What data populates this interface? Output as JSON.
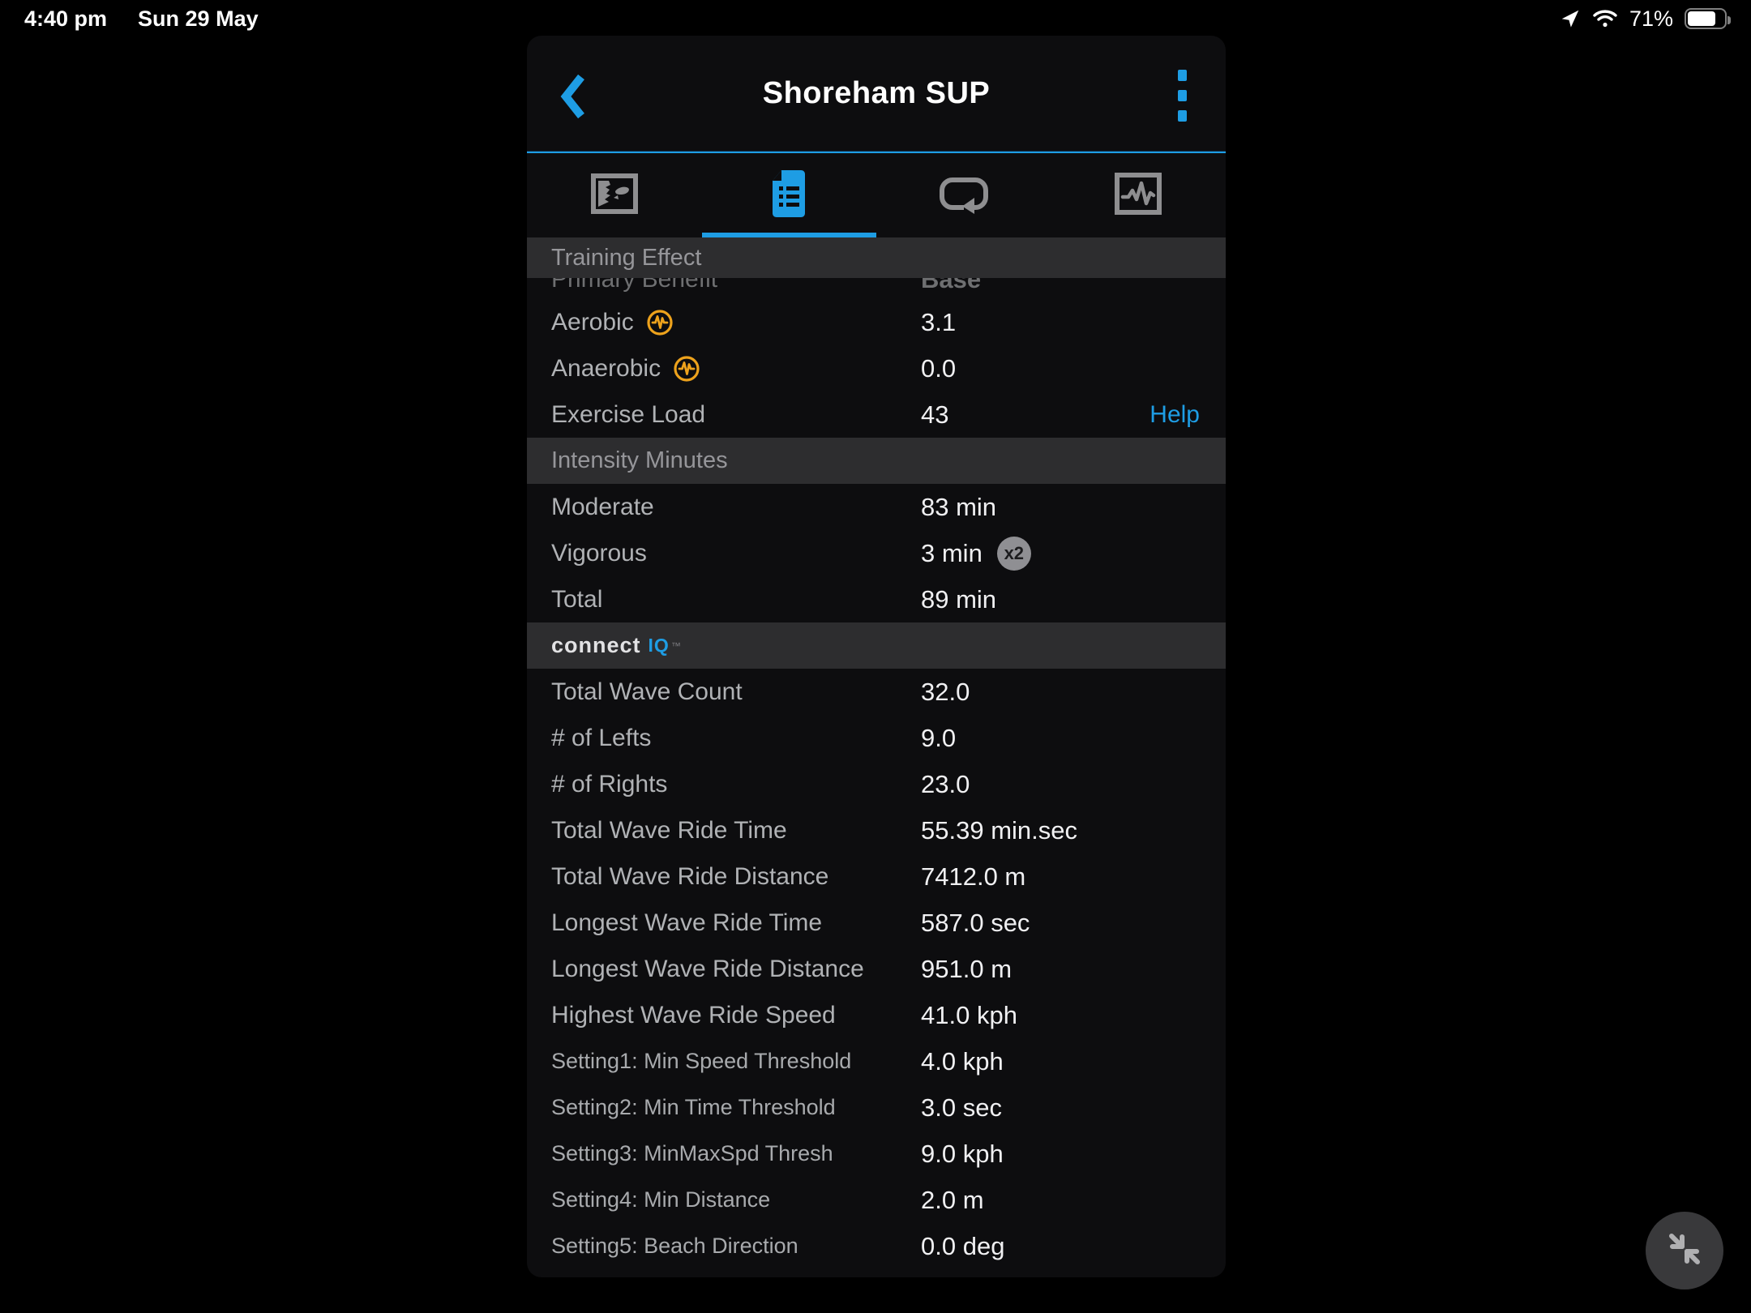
{
  "status_bar": {
    "time": "4:40 pm",
    "date": "Sun 29 May",
    "battery_percent": "71%",
    "icons": [
      "location-arrow-icon",
      "wifi-icon",
      "battery-icon"
    ]
  },
  "header": {
    "title": "Shoreham SUP",
    "back_icon": "chevron-left-icon",
    "menu_icon": "vertical-dots-menu-icon"
  },
  "tabs": [
    {
      "icon": "map-summary-icon",
      "active": false
    },
    {
      "icon": "stats-document-icon",
      "active": true
    },
    {
      "icon": "laps-loop-icon",
      "active": false
    },
    {
      "icon": "charts-pulse-icon",
      "active": false
    }
  ],
  "accent_colors": {
    "blue": "#1e9de4",
    "orange": "#eda21c",
    "band_gray": "#2d2d2f"
  },
  "sections": [
    {
      "type": "band",
      "label": "Training Effect",
      "first": true
    },
    {
      "type": "clipped_row",
      "label": "Primary Benefit",
      "value": "Base"
    },
    {
      "type": "row",
      "label": "Aerobic",
      "value": "3.1",
      "icon": "pulse-icon"
    },
    {
      "type": "row",
      "label": "Anaerobic",
      "value": "0.0",
      "icon": "pulse-icon"
    },
    {
      "type": "row",
      "label": "Exercise Load",
      "value": "43",
      "link": "Help"
    },
    {
      "type": "band",
      "label": "Intensity Minutes"
    },
    {
      "type": "row",
      "label": "Moderate",
      "value": "83 min"
    },
    {
      "type": "row",
      "label": "Vigorous",
      "value": "3 min",
      "badge": "x2"
    },
    {
      "type": "row",
      "label": "Total",
      "value": "89 min"
    },
    {
      "type": "logo_band",
      "text": "connect",
      "iq": "IQ",
      "tm": "™"
    },
    {
      "type": "row",
      "label": "Total Wave Count",
      "value": "32.0"
    },
    {
      "type": "row",
      "label": "# of Lefts",
      "value": "9.0"
    },
    {
      "type": "row",
      "label": "# of Rights",
      "value": "23.0"
    },
    {
      "type": "row",
      "label": "Total Wave Ride Time",
      "value": "55.39 min.sec"
    },
    {
      "type": "row",
      "label": "Total Wave Ride Distance",
      "value": "7412.0 m"
    },
    {
      "type": "row",
      "label": "Longest Wave Ride Time",
      "value": "587.0 sec"
    },
    {
      "type": "row",
      "label": "Longest Wave Ride Distance",
      "value": "951.0 m"
    },
    {
      "type": "row",
      "label": "Highest Wave Ride Speed",
      "value": "41.0 kph"
    },
    {
      "type": "row",
      "label": "Setting1: Min Speed Threshold",
      "value": "4.0 kph",
      "small": true
    },
    {
      "type": "row",
      "label": "Setting2: Min Time Threshold",
      "value": "3.0 sec",
      "small": true
    },
    {
      "type": "row",
      "label": "Setting3: MinMaxSpd Thresh",
      "value": "9.0 kph",
      "small": true
    },
    {
      "type": "row",
      "label": "Setting4: Min Distance",
      "value": "2.0 m",
      "small": true
    },
    {
      "type": "row",
      "label": "Setting5: Beach Direction",
      "value": "0.0 deg",
      "small": true
    }
  ],
  "fab": {
    "icon": "collapse-arrows-icon"
  }
}
